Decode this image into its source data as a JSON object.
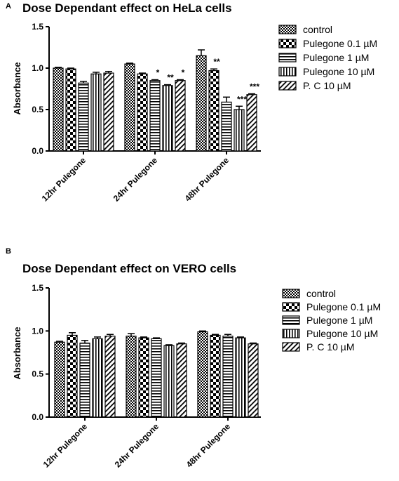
{
  "panels": [
    "A",
    "B"
  ],
  "colors": {
    "bar_fill": "#ffffff",
    "ink": "#000000"
  },
  "chart_data": [
    {
      "type": "bar",
      "title": "Dose Dependant effect on HeLa cells",
      "xlabel": "",
      "ylabel": "Absorbance",
      "ylim": [
        0,
        1.5
      ],
      "yticks": [
        "0.0",
        "0.5",
        "1.0",
        "1.5"
      ],
      "grid": false,
      "legend_position": "right",
      "categories": [
        "12hr Pulegone",
        "24hr Pulegone",
        "48hr Pulegone"
      ],
      "series": [
        {
          "name": "control",
          "pattern": "checker-fine",
          "values": [
            1.0,
            1.05,
            1.15
          ],
          "errors": [
            0.01,
            0.01,
            0.07
          ],
          "significance": [
            "",
            "",
            ""
          ]
        },
        {
          "name": "Pulegone 0.1 µM",
          "pattern": "checker-coarse",
          "values": [
            0.99,
            0.93,
            0.97
          ],
          "errors": [
            0.01,
            0.01,
            0.02
          ],
          "significance": [
            "",
            "",
            "**"
          ]
        },
        {
          "name": "Pulegone 1 µM",
          "pattern": "horizontal",
          "values": [
            0.82,
            0.85,
            0.59
          ],
          "errors": [
            0.02,
            0.01,
            0.06
          ],
          "significance": [
            "",
            "*",
            ""
          ]
        },
        {
          "name": "Pulegone 10 µM",
          "pattern": "vertical",
          "values": [
            0.93,
            0.79,
            0.5
          ],
          "errors": [
            0.02,
            0.01,
            0.04
          ],
          "significance": [
            "",
            "**",
            "***"
          ]
        },
        {
          "name": "P. C  10 µM",
          "pattern": "diagonal",
          "values": [
            0.94,
            0.85,
            0.68
          ],
          "errors": [
            0.02,
            0.01,
            0.01
          ],
          "significance": [
            "",
            "*",
            "***"
          ]
        }
      ]
    },
    {
      "type": "bar",
      "title": "Dose Dependant effect on VERO cells",
      "xlabel": "",
      "ylabel": "Absorbance",
      "ylim": [
        0,
        1.5
      ],
      "yticks": [
        "0.0",
        "0.5",
        "1.0",
        "1.5"
      ],
      "grid": false,
      "legend_position": "right",
      "categories": [
        "12hr Pulegone",
        "24hr Pulegone",
        "48hr Pulegone"
      ],
      "series": [
        {
          "name": "control",
          "pattern": "checker-fine",
          "values": [
            0.87,
            0.94,
            0.99
          ],
          "errors": [
            0.01,
            0.03,
            0.01
          ],
          "significance": [
            "",
            "",
            ""
          ]
        },
        {
          "name": "Pulegone 0.1 µM",
          "pattern": "checker-coarse",
          "values": [
            0.95,
            0.92,
            0.95
          ],
          "errors": [
            0.03,
            0.01,
            0.01
          ],
          "significance": [
            "",
            "",
            ""
          ]
        },
        {
          "name": "Pulegone 1 µM",
          "pattern": "horizontal",
          "values": [
            0.86,
            0.91,
            0.94
          ],
          "errors": [
            0.03,
            0.01,
            0.02
          ],
          "significance": [
            "",
            "",
            ""
          ]
        },
        {
          "name": "Pulegone 10 µM",
          "pattern": "vertical",
          "values": [
            0.91,
            0.83,
            0.92
          ],
          "errors": [
            0.02,
            0.01,
            0.01
          ],
          "significance": [
            "",
            "",
            ""
          ]
        },
        {
          "name": "P. C 10 µM",
          "pattern": "diagonal",
          "values": [
            0.94,
            0.85,
            0.85
          ],
          "errors": [
            0.02,
            0.01,
            0.01
          ],
          "significance": [
            "",
            "",
            ""
          ]
        }
      ]
    }
  ]
}
